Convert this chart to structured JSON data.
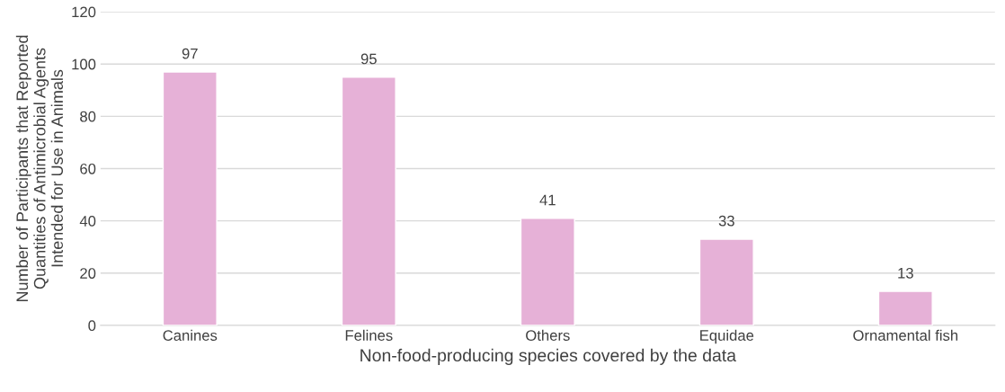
{
  "chart_data": {
    "type": "bar",
    "xlabel": "Non-food-producing species covered by the data",
    "ylabel": "Number of Participants that Reported\nQuantities of Antimicrobial Agents\nIntended for Use in Animals",
    "categories": [
      "Canines",
      "Felines",
      "Others",
      "Equidae",
      "Ornamental fish"
    ],
    "values": [
      97,
      95,
      41,
      33,
      13
    ],
    "color": "#e6b1d7",
    "ylim": [
      0,
      120
    ],
    "yticks": [
      0,
      20,
      40,
      60,
      80,
      100,
      120
    ],
    "grid": "y",
    "data_labels": true
  }
}
